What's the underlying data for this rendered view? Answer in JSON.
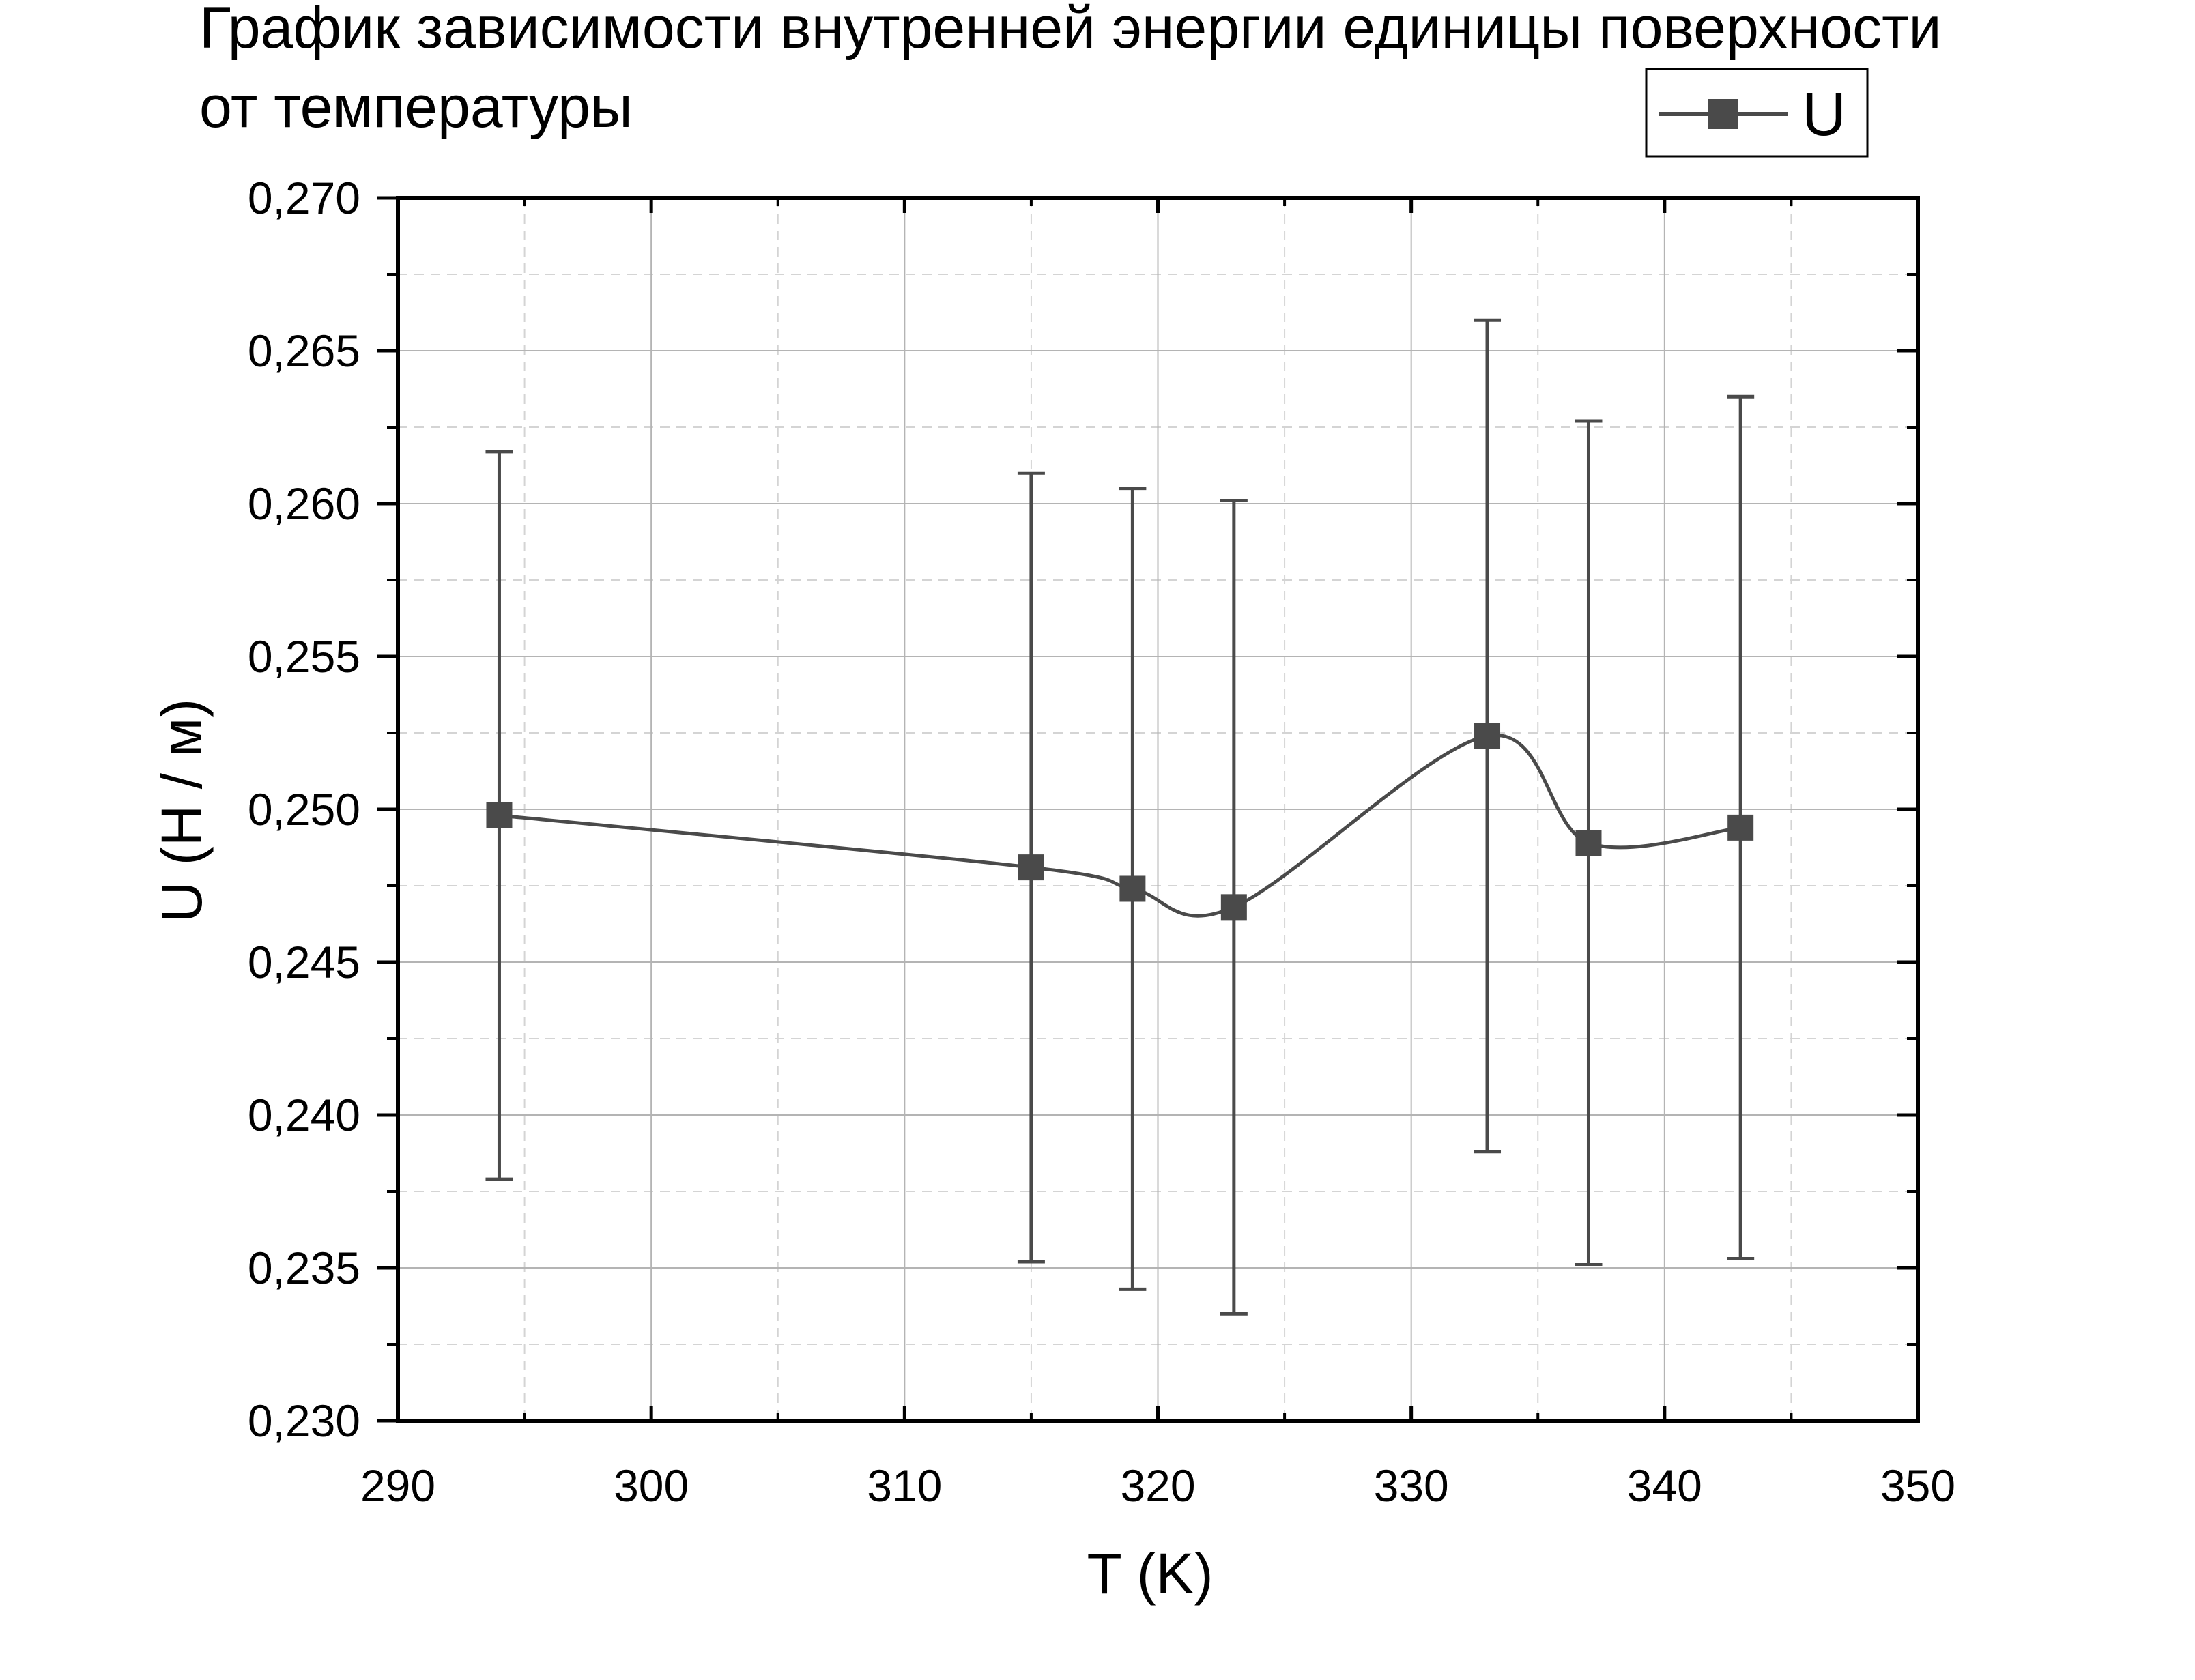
{
  "chart_data": {
    "type": "line",
    "title_lines": [
      "График зависимости внутренней энергии единицы поверхности",
      "от температуры"
    ],
    "xlabel": "T (K)",
    "ylabel": "U (Н / м)",
    "xlim": [
      290,
      350
    ],
    "ylim": [
      0.23,
      0.27
    ],
    "x_ticks": [
      290,
      300,
      310,
      320,
      330,
      340,
      350
    ],
    "y_ticks": [
      0.23,
      0.235,
      0.24,
      0.245,
      0.25,
      0.255,
      0.26,
      0.265,
      0.27
    ],
    "x_tick_labels": [
      "290",
      "300",
      "310",
      "320",
      "330",
      "340",
      "350"
    ],
    "y_tick_labels": [
      "0,230",
      "0,235",
      "0,240",
      "0,245",
      "0,250",
      "0,255",
      "0,260",
      "0,265",
      "0,270"
    ],
    "grid": true,
    "legend_position": "top-right",
    "line_style": "spline",
    "series": [
      {
        "name": "U",
        "color": "#4a4a4a",
        "marker": "square",
        "x": [
          294,
          315,
          319,
          323,
          333,
          337,
          343
        ],
        "y": [
          0.2498,
          0.2481,
          0.2474,
          0.2468,
          0.2524,
          0.2489,
          0.2494
        ],
        "error": [
          0.0119,
          0.0129,
          0.0131,
          0.0133,
          0.0136,
          0.0138,
          0.0141
        ]
      }
    ]
  }
}
